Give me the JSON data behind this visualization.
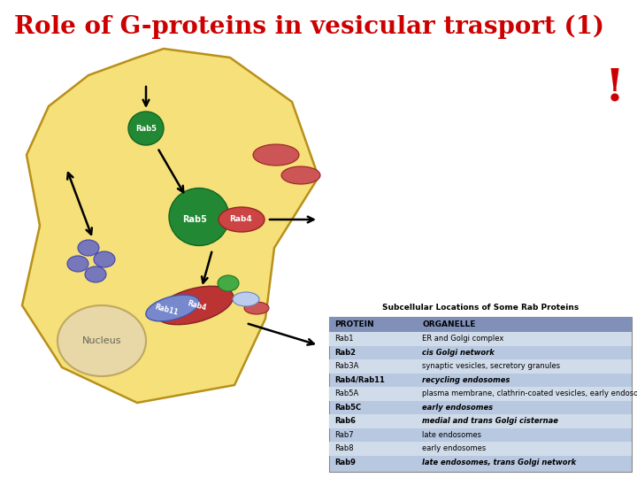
{
  "title": "Role of G-proteins in vesicular trasport (1)",
  "title_color": "#cc0000",
  "title_fontsize": 20,
  "exclamation": "!",
  "exclamation_color": "#cc0000",
  "bg_color": "#ffffff",
  "cell_color": "#f5e07a",
  "cell_edge_color": "#b8901a",
  "nucleus_color": "#e8d8a8",
  "nucleus_edge_color": "#c0a860",
  "table_title": "Subcellular Locations of Some Rab Proteins",
  "table_header_color": "#8090b8",
  "table_bg_color": "#b8c8e0",
  "table_alt_color": "#d0dcea",
  "table_proteins": [
    "Rab1",
    "Rab2",
    "Rab3A",
    "Rab4/Rab11",
    "Rab5A",
    "Rab5C",
    "Rab6",
    "Rab7",
    "Rab8",
    "Rab9"
  ],
  "table_organelles": [
    "ER and Golgi complex",
    "cis Golgi network",
    "synaptic vesicles, secretory granules",
    "recycling endosomes",
    "plasma membrane, clathrin-coated vesicles, early endosomes",
    "early endosomes",
    "medial and trans Golgi cisternae",
    "late endosomes",
    "early endosomes",
    "late endosomes, trans Golgi network"
  ],
  "table_bold_rows": [
    1,
    3,
    5,
    6,
    9
  ],
  "cell_pts_x": [
    155,
    185,
    260,
    330,
    360,
    310,
    300,
    265,
    155,
    70,
    25,
    45,
    30,
    55,
    100
  ],
  "cell_pts_y": [
    65,
    55,
    65,
    115,
    200,
    280,
    360,
    435,
    455,
    415,
    345,
    255,
    175,
    120,
    85
  ]
}
